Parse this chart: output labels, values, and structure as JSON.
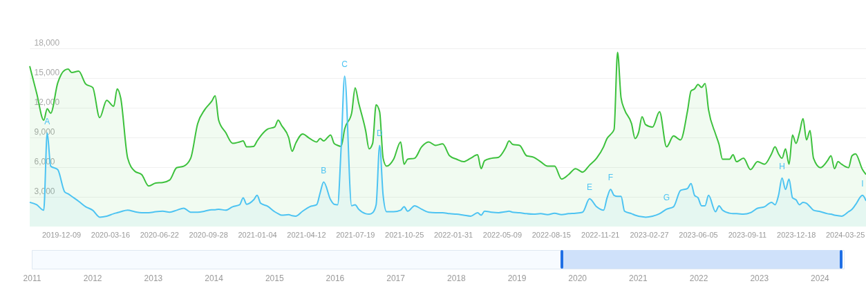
{
  "chart_data": [
    {
      "type": "area",
      "x": [
        "2019-10-07",
        "2019-10-21",
        "2019-11-04",
        "2019-11-11",
        "2019-11-18",
        "2019-12-02",
        "2019-12-16",
        "2019-12-23",
        "2019-12-30",
        "2020-01-13",
        "2020-01-27",
        "2020-02-10",
        "2020-02-24",
        "2020-03-09",
        "2020-03-23",
        "2020-03-30",
        "2020-04-06",
        "2020-04-20",
        "2020-05-04",
        "2020-05-18",
        "2020-06-01",
        "2020-06-15",
        "2020-06-29",
        "2020-07-13",
        "2020-07-27",
        "2020-08-10",
        "2020-08-24",
        "2020-09-07",
        "2020-09-21",
        "2020-10-05",
        "2020-10-12",
        "2020-10-19",
        "2020-11-02",
        "2020-11-16",
        "2020-11-30",
        "2020-12-07",
        "2020-12-14",
        "2020-12-28",
        "2021-01-04",
        "2021-01-11",
        "2021-01-25",
        "2021-02-08",
        "2021-02-15",
        "2021-02-22",
        "2021-03-08",
        "2021-03-15",
        "2021-03-22",
        "2021-04-05",
        "2021-04-19",
        "2021-05-03",
        "2021-05-10",
        "2021-05-17",
        "2021-05-31",
        "2021-06-07",
        "2021-06-14",
        "2021-06-21",
        "2021-06-28",
        "2021-07-12",
        "2021-07-19",
        "2021-07-26",
        "2021-08-09",
        "2021-08-16",
        "2021-08-23",
        "2021-08-30",
        "2021-09-06",
        "2021-09-13",
        "2021-09-20",
        "2021-10-04",
        "2021-10-18",
        "2021-10-25",
        "2021-11-01",
        "2021-11-15",
        "2021-11-29",
        "2021-12-13",
        "2021-12-27",
        "2022-01-10",
        "2022-01-24",
        "2022-02-07",
        "2022-02-21",
        "2022-03-07",
        "2022-03-21",
        "2022-03-28",
        "2022-04-04",
        "2022-04-18",
        "2022-05-02",
        "2022-05-16",
        "2022-05-23",
        "2022-05-30",
        "2022-06-13",
        "2022-06-27",
        "2022-07-11",
        "2022-07-25",
        "2022-08-08",
        "2022-08-22",
        "2022-09-05",
        "2022-09-19",
        "2022-10-03",
        "2022-10-17",
        "2022-10-31",
        "2022-11-14",
        "2022-11-28",
        "2022-12-05",
        "2022-12-12",
        "2022-12-19",
        "2022-12-26",
        "2023-01-02",
        "2023-01-09",
        "2023-01-23",
        "2023-01-30",
        "2023-02-06",
        "2023-02-13",
        "2023-02-20",
        "2023-03-06",
        "2023-03-20",
        "2023-04-03",
        "2023-04-17",
        "2023-05-01",
        "2023-05-15",
        "2023-05-22",
        "2023-05-29",
        "2023-06-05",
        "2023-06-12",
        "2023-06-19",
        "2023-06-26",
        "2023-07-10",
        "2023-07-17",
        "2023-07-24",
        "2023-08-07",
        "2023-08-14",
        "2023-08-21",
        "2023-09-04",
        "2023-09-18",
        "2023-10-02",
        "2023-10-16",
        "2023-10-30",
        "2023-11-06",
        "2023-11-13",
        "2023-11-20",
        "2023-11-27",
        "2023-12-04",
        "2023-12-11",
        "2023-12-18",
        "2023-12-25",
        "2024-01-01",
        "2024-01-08",
        "2024-01-15",
        "2024-01-22",
        "2024-02-05",
        "2024-02-19",
        "2024-02-26",
        "2024-03-04",
        "2024-03-11",
        "2024-03-18",
        "2024-04-01",
        "2024-04-08",
        "2024-04-15",
        "2024-04-29",
        "2024-05-06"
      ],
      "series": [
        {
          "color": "#3cc13c",
          "values": [
            16200,
            13450,
            10750,
            11900,
            11450,
            14500,
            15800,
            15900,
            15550,
            15700,
            14400,
            14050,
            11000,
            12750,
            12150,
            13900,
            13000,
            6900,
            5600,
            5250,
            4100,
            4400,
            4450,
            4700,
            5950,
            6100,
            6900,
            10400,
            11800,
            12650,
            13200,
            10750,
            9500,
            8400,
            8550,
            8650,
            8050,
            8100,
            8650,
            9150,
            9850,
            10050,
            10750,
            10200,
            9000,
            7600,
            8400,
            9350,
            8900,
            8550,
            8900,
            8650,
            9250,
            8400,
            8200,
            8100,
            9850,
            11450,
            14000,
            12500,
            9700,
            7850,
            8400,
            12300,
            11600,
            6900,
            6100,
            6800,
            8550,
            6300,
            6800,
            6900,
            8050,
            8550,
            8200,
            8350,
            7150,
            6800,
            6550,
            6900,
            7250,
            5850,
            6650,
            6900,
            7000,
            7950,
            8650,
            8300,
            8200,
            7150,
            7000,
            6550,
            6100,
            6100,
            4800,
            5250,
            5850,
            5500,
            6200,
            6900,
            8050,
            8900,
            9300,
            9800,
            17600,
            13000,
            11800,
            10400,
            8900,
            9500,
            11100,
            10300,
            10050,
            11600,
            8050,
            9150,
            8750,
            11700,
            13700,
            13900,
            14350,
            14050,
            14450,
            11800,
            9350,
            8300,
            6800,
            6800,
            7250,
            6550,
            6900,
            5750,
            6550,
            6300,
            7350,
            8050,
            7350,
            6900,
            7850,
            6300,
            9250,
            8400,
            9500,
            10900,
            8750,
            9700,
            6900,
            5950,
            6650,
            7150,
            5850,
            6550,
            6300,
            5950,
            7150,
            7350,
            5750,
            5250
          ]
        },
        {
          "color": "#4cc3f2",
          "values": [
            2450,
            2200,
            1650,
            9450,
            6100,
            5750,
            3500,
            3300,
            3050,
            2550,
            2000,
            1650,
            950,
            1050,
            1300,
            1400,
            1500,
            1650,
            1500,
            1400,
            1400,
            1500,
            1550,
            1450,
            1650,
            1850,
            1450,
            1450,
            1550,
            1700,
            1700,
            1750,
            1650,
            2000,
            2200,
            2900,
            2250,
            2700,
            3150,
            2350,
            2050,
            1500,
            1300,
            1150,
            1200,
            1100,
            1050,
            1550,
            2000,
            2200,
            3400,
            4500,
            2700,
            2250,
            2200,
            8000,
            15200,
            2100,
            2200,
            1750,
            1300,
            1250,
            1400,
            2200,
            8200,
            3150,
            1500,
            1500,
            1650,
            2000,
            1550,
            2100,
            1750,
            1450,
            1400,
            1400,
            1300,
            1250,
            1150,
            1050,
            1400,
            1150,
            1550,
            1450,
            1400,
            1500,
            1550,
            1450,
            1400,
            1300,
            1250,
            1300,
            1200,
            1350,
            1200,
            1300,
            1350,
            1450,
            2800,
            2000,
            1650,
            2900,
            3750,
            3150,
            3050,
            3050,
            1550,
            1300,
            1150,
            1050,
            1000,
            950,
            1050,
            1300,
            1750,
            2000,
            3650,
            3850,
            4350,
            3150,
            2900,
            2100,
            2100,
            3150,
            1500,
            2100,
            1650,
            1350,
            1300,
            1300,
            1250,
            1400,
            1850,
            2000,
            2450,
            2200,
            3150,
            4900,
            3750,
            4800,
            2900,
            2700,
            2200,
            2450,
            2350,
            2000,
            1650,
            1500,
            1300,
            1250,
            1150,
            1100,
            1050,
            1500,
            1750,
            2200,
            3150,
            2600
          ]
        }
      ],
      "xlim": [
        "2019-10-07",
        "2024-05-06"
      ],
      "xticks": [
        "2019-12-09",
        "2020-03-16",
        "2020-06-22",
        "2020-09-28",
        "2021-01-04",
        "2021-04-12",
        "2021-07-19",
        "2021-10-25",
        "2022-01-31",
        "2022-05-09",
        "2022-08-15",
        "2022-11-21",
        "2023-02-27",
        "2023-06-05",
        "2023-09-11",
        "2023-12-18",
        "2024-03-25"
      ],
      "ylim": [
        0,
        18000
      ],
      "yticks": [
        {
          "value": 3000,
          "label": "3,000"
        },
        {
          "value": 6000,
          "label": "6,000"
        },
        {
          "value": 9000,
          "label": "9,000"
        },
        {
          "value": 12000,
          "label": "12,000"
        },
        {
          "value": 15000,
          "label": "15,000"
        },
        {
          "value": 18000,
          "label": "18,000"
        }
      ],
      "grid": "y",
      "annotations": [
        {
          "text": "A",
          "x": "2019-11-11",
          "y": 9450
        },
        {
          "text": "B",
          "x": "2021-05-17",
          "y": 4500
        },
        {
          "text": "C",
          "x": "2021-06-28",
          "y": 15200
        },
        {
          "text": "D",
          "x": "2021-09-06",
          "y": 8200
        },
        {
          "text": "E",
          "x": "2022-10-31",
          "y": 2800
        },
        {
          "text": "F",
          "x": "2022-12-12",
          "y": 3750
        },
        {
          "text": "G",
          "x": "2023-04-03",
          "y": 1750
        },
        {
          "text": "H",
          "x": "2023-11-20",
          "y": 4900
        },
        {
          "text": "I",
          "x": "2024-04-29",
          "y": 3150
        }
      ]
    },
    {
      "type": "bar",
      "orientation": "horizontal",
      "categories": [
        null
      ],
      "base": [
        2019.75
      ],
      "values": [
        4.6
      ],
      "color": "#cfe1fa",
      "xlim": [
        2011,
        2024.4
      ],
      "xticks": [
        2011,
        2012,
        2013,
        2014,
        2015,
        2016,
        2017,
        2018,
        2019,
        2020,
        2021,
        2022,
        2023,
        2024
      ]
    }
  ]
}
